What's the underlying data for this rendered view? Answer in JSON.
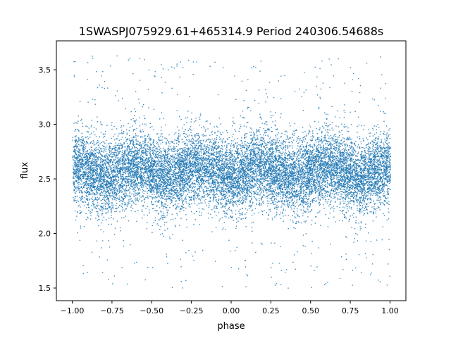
{
  "chart_data": {
    "type": "scatter",
    "title": "1SWASPJ075929.61+465314.9 Period 240306.54688s",
    "xlabel": "phase",
    "ylabel": "flux",
    "xlim": [
      -1.1,
      1.1
    ],
    "ylim": [
      1.384,
      3.765
    ],
    "xticks": [
      -1.0,
      -0.75,
      -0.5,
      -0.25,
      0.0,
      0.25,
      0.5,
      0.75,
      1.0
    ],
    "xtick_labels": [
      "−1.00",
      "−0.75",
      "−0.50",
      "−0.25",
      "0.00",
      "0.25",
      "0.50",
      "0.75",
      "1.00"
    ],
    "yticks": [
      1.5,
      2.0,
      2.5,
      3.0,
      3.5
    ],
    "ytick_labels": [
      "1.5",
      "2.0",
      "2.5",
      "3.0",
      "3.5"
    ],
    "grid": false,
    "marker_color": "#1f77b4",
    "series": [
      {
        "x_range": [
          -1.0,
          1.0
        ],
        "flux_center": 2.57,
        "flux_core_range": [
          2.2,
          2.95
        ],
        "flux_full_range": [
          1.5,
          3.65
        ]
      }
    ]
  }
}
